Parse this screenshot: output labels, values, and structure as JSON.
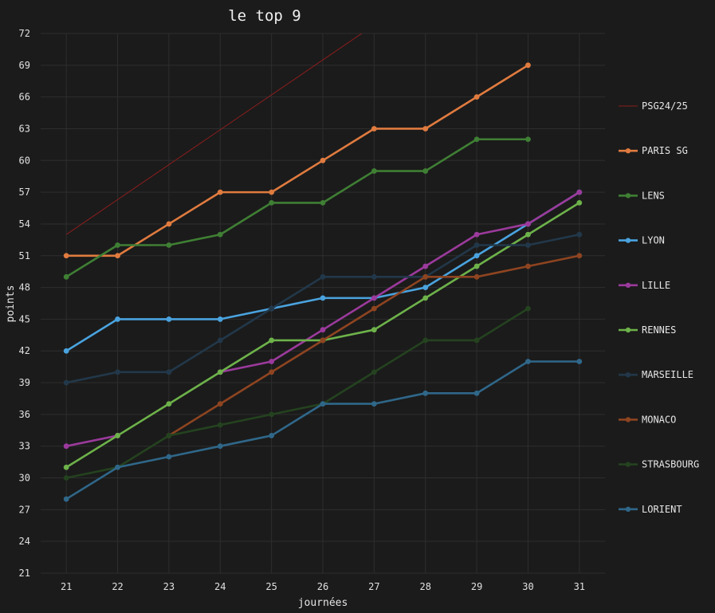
{
  "chart_data": {
    "type": "line",
    "title": "le top 9",
    "xlabel": "journées",
    "ylabel": "points",
    "x": [
      21,
      22,
      23,
      24,
      25,
      26,
      27,
      28,
      29,
      30,
      31
    ],
    "xlim": [
      20.5,
      31.5
    ],
    "ylim": [
      21,
      72
    ],
    "yticks": [
      21,
      24,
      27,
      30,
      33,
      36,
      39,
      42,
      45,
      48,
      51,
      54,
      57,
      60,
      63,
      66,
      69,
      72
    ],
    "grid": true,
    "legend": "right",
    "series": [
      {
        "name": "PSG24/25",
        "color": "#8b1d1d",
        "markers": false,
        "x": [
          21,
          31
        ],
        "values": [
          53,
          86
        ]
      },
      {
        "name": "PARIS SG",
        "color": "#e07b3f",
        "markers": true,
        "values": [
          51,
          51,
          54,
          57,
          57,
          60,
          63,
          63,
          66,
          69,
          null
        ]
      },
      {
        "name": "LENS",
        "color": "#3f7f34",
        "markers": true,
        "values": [
          49,
          52,
          52,
          53,
          56,
          56,
          59,
          59,
          62,
          62,
          null
        ]
      },
      {
        "name": "LYON",
        "color": "#4aa3df",
        "markers": true,
        "values": [
          42,
          45,
          45,
          45,
          46,
          47,
          47,
          48,
          51,
          54,
          57
        ]
      },
      {
        "name": "LILLE",
        "color": "#9b3a9c",
        "markers": true,
        "values": [
          33,
          34,
          null,
          40,
          41,
          44,
          47,
          50,
          53,
          54,
          57
        ]
      },
      {
        "name": "RENNES",
        "color": "#6db24a",
        "markers": true,
        "values": [
          31,
          34,
          37,
          40,
          43,
          43,
          44,
          47,
          50,
          53,
          56
        ]
      },
      {
        "name": "MARSEILLE",
        "color": "#22384a",
        "markers": true,
        "values": [
          39,
          40,
          40,
          43,
          46,
          49,
          49,
          49,
          52,
          52,
          53
        ]
      },
      {
        "name": "MONACO",
        "color": "#8e4420",
        "markers": true,
        "values": [
          null,
          null,
          34,
          37,
          40,
          43,
          46,
          49,
          49,
          50,
          51
        ]
      },
      {
        "name": "STRASBOURG",
        "color": "#24421f",
        "markers": true,
        "values": [
          30,
          31,
          34,
          35,
          36,
          37,
          40,
          43,
          43,
          46,
          null
        ]
      },
      {
        "name": "LORIENT",
        "color": "#2f6789",
        "markers": true,
        "values": [
          28,
          31,
          32,
          33,
          34,
          37,
          37,
          38,
          38,
          41,
          41
        ]
      }
    ]
  }
}
